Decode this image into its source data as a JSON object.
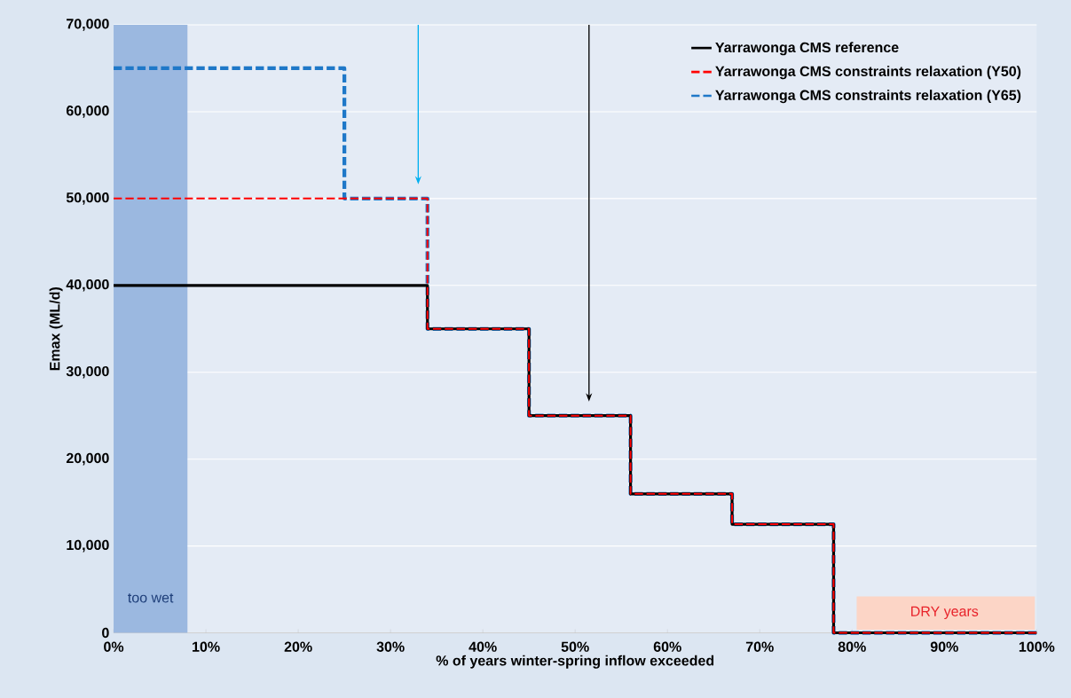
{
  "chart_data": {
    "type": "step",
    "xlabel": "% of years winter-spring inflow exceeded",
    "ylabel": "Emax (ML/d)",
    "series": [
      {
        "name": "Yarrawonga CMS reference",
        "color": "#000000",
        "line_style": "solid",
        "x": [
          0,
          34,
          45,
          56,
          67,
          78,
          100
        ],
        "values": [
          40000,
          35000,
          25000,
          16000,
          12500,
          0,
          0
        ]
      },
      {
        "name": "Yarrawonga CMS constraints relaxation (Y50)",
        "color": "#ff0000",
        "line_style": "dashed",
        "x": [
          0,
          34,
          45,
          56,
          67,
          78,
          100
        ],
        "values": [
          50000,
          35000,
          25000,
          16000,
          12500,
          0,
          0
        ]
      },
      {
        "name": "Yarrawonga CMS constraints relaxation (Y65)",
        "color": "#1f78c8",
        "line_style": "dashed",
        "x": [
          0,
          25,
          34,
          45,
          56,
          67,
          78,
          100
        ],
        "values": [
          65000,
          50000,
          35000,
          25000,
          16000,
          12500,
          0,
          0
        ]
      }
    ],
    "xlim": [
      0,
      100
    ],
    "xticks": [
      {
        "value": 0,
        "label": "0%"
      },
      {
        "value": 10,
        "label": "10%"
      },
      {
        "value": 20,
        "label": "20%"
      },
      {
        "value": 30,
        "label": "30%"
      },
      {
        "value": 40,
        "label": "40%"
      },
      {
        "value": 50,
        "label": "50%"
      },
      {
        "value": 60,
        "label": "60%"
      },
      {
        "value": 70,
        "label": "70%"
      },
      {
        "value": 80,
        "label": "80%"
      },
      {
        "value": 90,
        "label": "90%"
      },
      {
        "value": 100,
        "label": "100%"
      }
    ],
    "ylim": [
      0,
      70000
    ],
    "yticks": [
      0,
      {
        "value": 10000,
        "label": "10,000"
      },
      {
        "value": 20000,
        "label": "20,000"
      },
      {
        "value": 30000,
        "label": "30,000"
      },
      {
        "value": 40000,
        "label": "40,000"
      },
      {
        "value": 50000,
        "label": "50,000"
      },
      {
        "value": 60000,
        "label": "60,000"
      },
      {
        "value": 70000,
        "label": "70,000"
      }
    ],
    "bands": [
      {
        "axis": "x",
        "from": 0,
        "to": 8,
        "label": "too wet",
        "color": "#9bb8e0"
      }
    ],
    "ref_lines": [
      {
        "axis": "x",
        "value": 33,
        "color": "#00b0f0"
      },
      {
        "axis": "x",
        "value": 51.5,
        "color": "#000000"
      }
    ],
    "annotations": [
      "DRY years"
    ],
    "grid": "y",
    "legend": "top right"
  }
}
